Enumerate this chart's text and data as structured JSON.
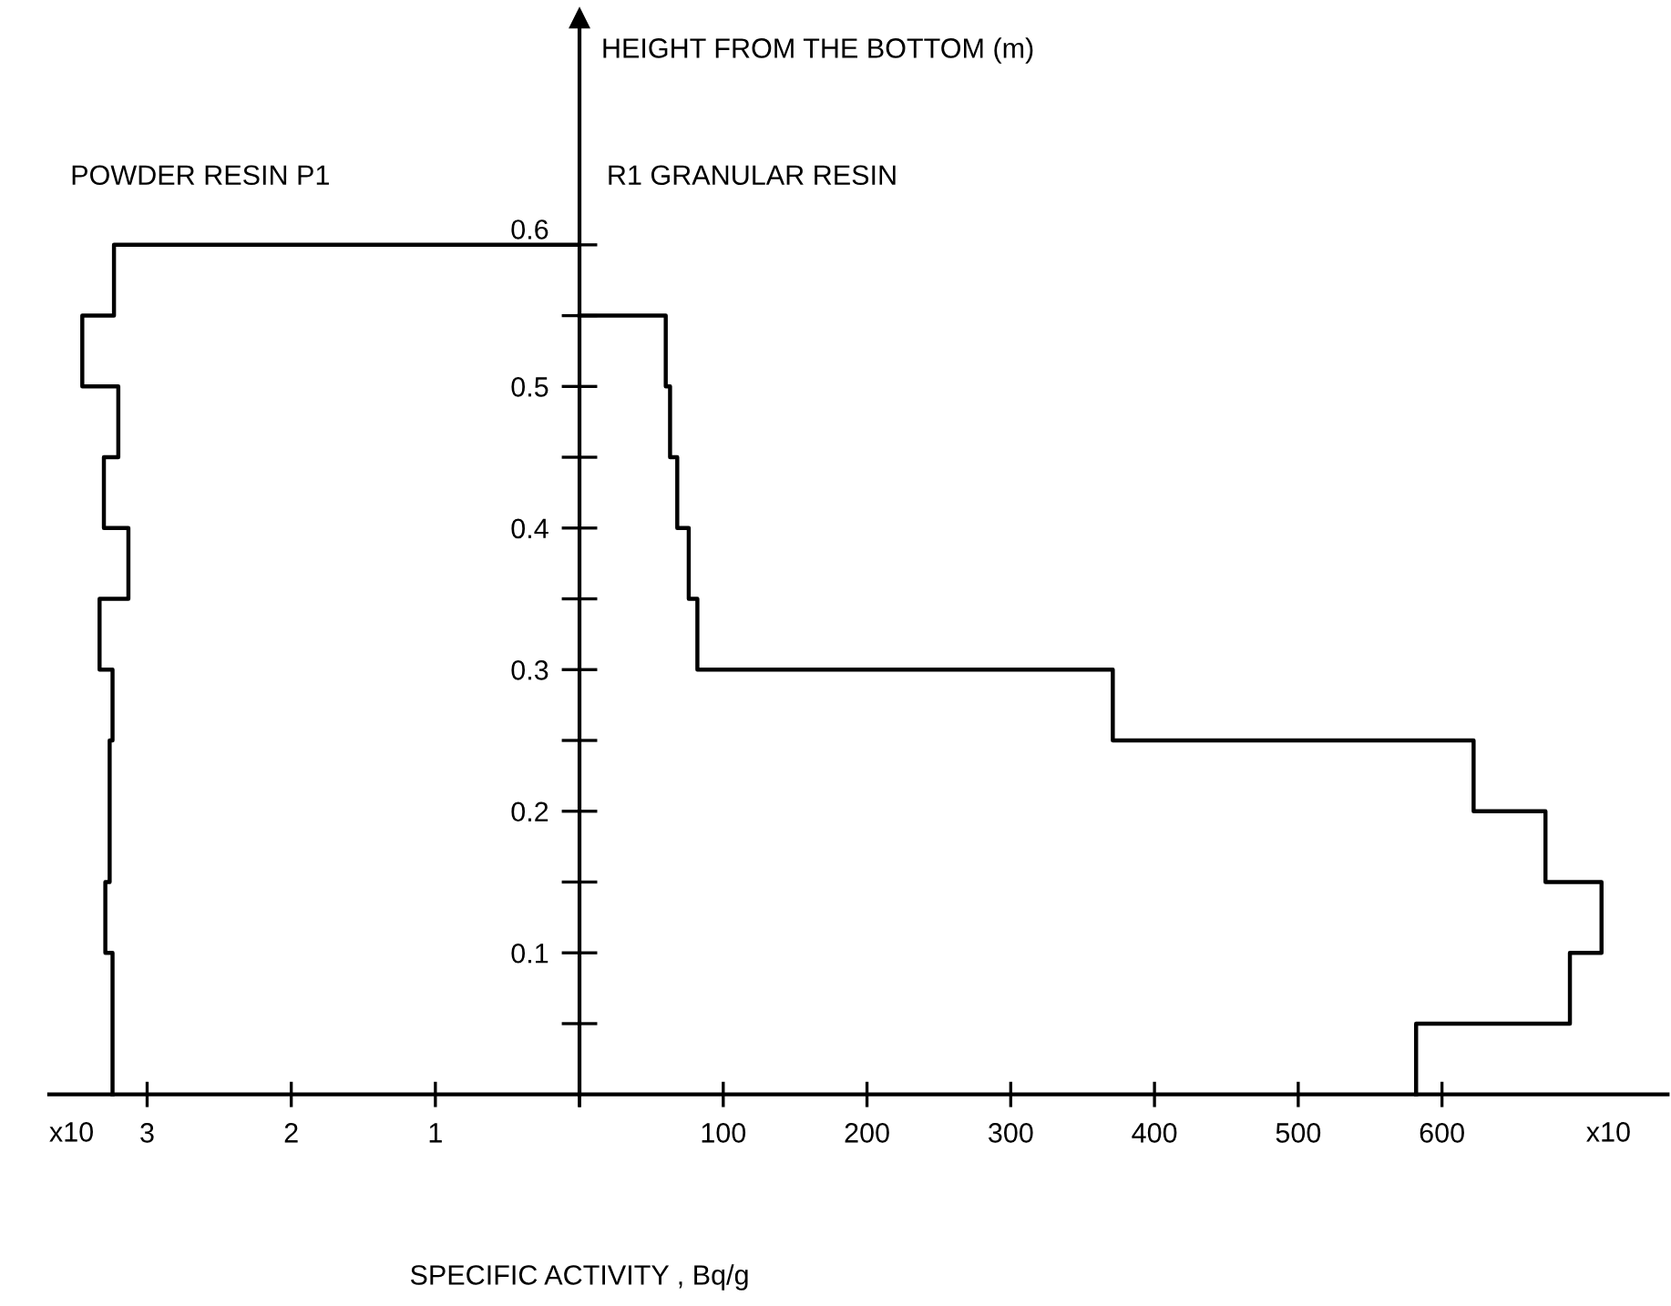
{
  "chart_data": [
    {
      "type": "line",
      "xlim": [
        3.68,
        0
      ],
      "xticks": [
        {
          "value": 0,
          "label": null
        },
        1,
        2,
        3
      ],
      "ylim": [
        0,
        0.76
      ],
      "yticks": [
        {
          "value": 0.05,
          "label": null
        },
        0.1,
        {
          "value": 0.15,
          "label": null
        },
        0.2,
        {
          "value": 0.25,
          "label": null
        },
        0.3,
        {
          "value": 0.35,
          "label": null
        },
        0.4,
        {
          "value": 0.45,
          "label": null
        },
        0.5,
        {
          "value": 0.55,
          "label": null
        },
        0.6
      ],
      "tick_labels": "x",
      "grid": false,
      "legend": false,
      "marker": "none",
      "line_style": "solid",
      "annotations": [
        "x10"
      ],
      "series": [
        {
          "name": "POWDER RESIN P1",
          "color": "#000000",
          "x": [
            0,
            3.23,
            3.23,
            3.45,
            3.45,
            3.2,
            3.2,
            3.3,
            3.3,
            3.13,
            3.13,
            3.33,
            3.33,
            3.24,
            3.24,
            3.26,
            3.26,
            3.29,
            3.29,
            3.24,
            3.24
          ],
          "values": [
            0.6,
            0.6,
            0.55,
            0.55,
            0.5,
            0.5,
            0.45,
            0.45,
            0.4,
            0.4,
            0.35,
            0.35,
            0.3,
            0.3,
            0.25,
            0.25,
            0.15,
            0.15,
            0.1,
            0.1,
            0
          ]
        }
      ]
    },
    {
      "type": "line",
      "xlim": [
        0,
        757
      ],
      "xticks": [
        {
          "value": 0,
          "label": null
        },
        100,
        200,
        300,
        400,
        500,
        600
      ],
      "ylim": [
        0,
        0.76
      ],
      "yticks": [
        {
          "value": 0.05,
          "label": null
        },
        0.1,
        {
          "value": 0.15,
          "label": null
        },
        0.2,
        {
          "value": 0.25,
          "label": null
        },
        0.3,
        {
          "value": 0.35,
          "label": null
        },
        0.4,
        {
          "value": 0.45,
          "label": null
        },
        0.5,
        {
          "value": 0.55,
          "label": null
        },
        0.6
      ],
      "ylabel": "HEIGHT FROM THE BOTTOM (m)",
      "xlabel": "SPECIFIC ACTIVITY , Bq/g",
      "grid": false,
      "legend": false,
      "marker": "none",
      "line_style": "solid",
      "annotations": [
        "x10"
      ],
      "series": [
        {
          "name": "R1 GRANULAR RESIN",
          "color": "#000000",
          "x": [
            0,
            60,
            60,
            63,
            63,
            68,
            68,
            76,
            76,
            82,
            82,
            87,
            87,
            371,
            371,
            622,
            622,
            672,
            672,
            711,
            711,
            689,
            689,
            582,
            582
          ],
          "values": [
            0.55,
            0.55,
            0.5,
            0.5,
            0.45,
            0.45,
            0.4,
            0.4,
            0.35,
            0.35,
            0.3,
            0.3,
            0.3,
            0.3,
            0.25,
            0.25,
            0.2,
            0.2,
            0.15,
            0.15,
            0.1,
            0.1,
            0.05,
            0.05,
            0
          ]
        }
      ]
    }
  ]
}
